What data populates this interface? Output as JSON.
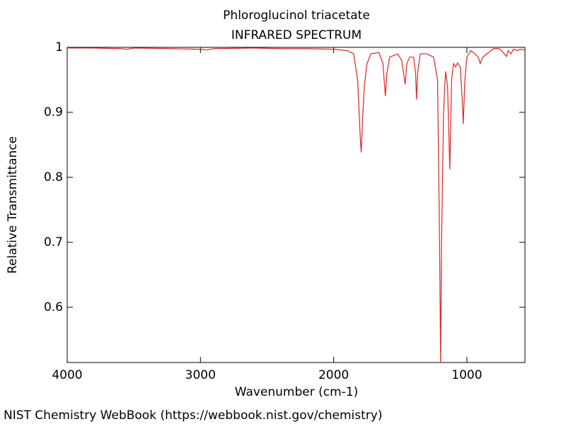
{
  "chart_data": {
    "type": "line",
    "title": "Phloroglucinol triacetate",
    "subtitle": "INFRARED SPECTRUM",
    "x_label": "Wavenumber (cm-1)",
    "y_label": "Relative Transmittance",
    "footer": "NIST Chemistry WebBook (https://webbook.nist.gov/chemistry)",
    "xlim": [
      4000,
      564
    ],
    "ylim": [
      0.515,
      1
    ],
    "xticks": [
      4000,
      3000,
      2000,
      1000
    ],
    "yticks": [
      0.6,
      0.7,
      0.8,
      0.9,
      1
    ],
    "x": [
      4000,
      3800,
      3600,
      3550,
      3500,
      3200,
      3000,
      2950,
      2900,
      2600,
      2400,
      2200,
      2000,
      1900,
      1850,
      1820,
      1800,
      1793,
      1785,
      1770,
      1750,
      1720,
      1660,
      1630,
      1612,
      1600,
      1580,
      1520,
      1490,
      1475,
      1463,
      1450,
      1430,
      1400,
      1385,
      1378,
      1370,
      1350,
      1300,
      1250,
      1220,
      1205,
      1197,
      1190,
      1175,
      1160,
      1145,
      1128,
      1115,
      1100,
      1085,
      1070,
      1050,
      1035,
      1027,
      1015,
      1000,
      970,
      940,
      915,
      900,
      880,
      850,
      800,
      760,
      740,
      720,
      702,
      690,
      670,
      650,
      620,
      600,
      564
    ],
    "series": [
      {
        "name": "Phloroglucinol triacetate",
        "color": "#dd2222",
        "values": [
          0.999,
          0.999,
          0.998,
          0.997,
          0.999,
          0.998,
          0.997,
          0.996,
          0.998,
          0.999,
          0.998,
          0.998,
          0.997,
          0.995,
          0.99,
          0.95,
          0.86,
          0.838,
          0.88,
          0.94,
          0.975,
          0.99,
          0.992,
          0.975,
          0.925,
          0.96,
          0.985,
          0.99,
          0.98,
          0.96,
          0.943,
          0.975,
          0.985,
          0.985,
          0.96,
          0.92,
          0.96,
          0.99,
          0.99,
          0.985,
          0.95,
          0.7,
          0.515,
          0.7,
          0.9,
          0.963,
          0.94,
          0.812,
          0.95,
          0.975,
          0.97,
          0.976,
          0.97,
          0.92,
          0.882,
          0.95,
          0.985,
          0.995,
          0.99,
          0.985,
          0.975,
          0.985,
          0.99,
          0.998,
          0.998,
          0.995,
          0.99,
          0.986,
          0.995,
          0.99,
          0.997,
          0.995,
          0.997,
          0.996
        ]
      }
    ]
  }
}
